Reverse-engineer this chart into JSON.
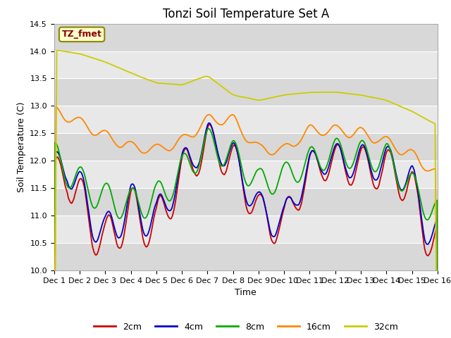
{
  "title": "Tonzi Soil Temperature Set A",
  "xlabel": "Time",
  "ylabel": "Soil Temperature (C)",
  "ylim": [
    10.0,
    14.5
  ],
  "xlim": [
    0,
    15
  ],
  "xtick_labels": [
    "Dec 1",
    "Dec 2",
    "Dec 3",
    "Dec 4",
    "Dec 5",
    "Dec 6",
    "Dec 7",
    "Dec 8",
    "Dec 9",
    "Dec 10",
    "Dec 11",
    "Dec 12",
    "Dec 13",
    "Dec 14",
    "Dec 15",
    "Dec 16"
  ],
  "legend_labels": [
    "2cm",
    "4cm",
    "8cm",
    "16cm",
    "32cm"
  ],
  "line_colors": [
    "#cc0000",
    "#0000cc",
    "#00aa00",
    "#ff8800",
    "#cccc00"
  ],
  "annotation_text": "TZ_fmet",
  "annotation_color": "#880000",
  "annotation_bg": "#ffffcc",
  "annotation_edge": "#888800",
  "bg_color": "#e8e8e8",
  "band_color_dark": "#d8d8d8",
  "band_color_light": "#e8e8e8",
  "title_fontsize": 12,
  "label_fontsize": 9,
  "tick_fontsize": 8
}
